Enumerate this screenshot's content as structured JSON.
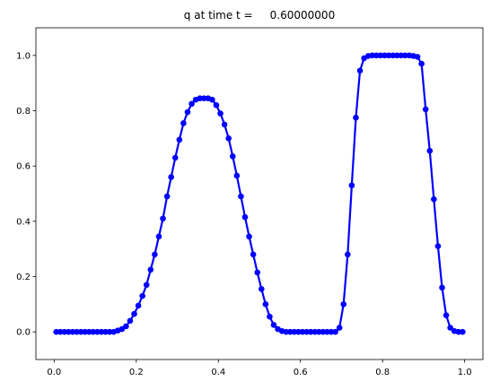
{
  "chart_data": {
    "type": "line",
    "title": "q at time t =     0.60000000",
    "x": [
      0.005,
      0.015,
      0.025,
      0.035,
      0.045,
      0.055,
      0.065,
      0.075,
      0.085,
      0.095,
      0.105,
      0.115,
      0.125,
      0.135,
      0.145,
      0.155,
      0.165,
      0.175,
      0.185,
      0.195,
      0.205,
      0.215,
      0.225,
      0.235,
      0.245,
      0.255,
      0.265,
      0.275,
      0.285,
      0.295,
      0.305,
      0.315,
      0.325,
      0.335,
      0.345,
      0.355,
      0.365,
      0.375,
      0.385,
      0.395,
      0.405,
      0.415,
      0.425,
      0.435,
      0.445,
      0.455,
      0.465,
      0.475,
      0.485,
      0.495,
      0.505,
      0.515,
      0.525,
      0.535,
      0.545,
      0.555,
      0.565,
      0.575,
      0.585,
      0.595,
      0.605,
      0.615,
      0.625,
      0.635,
      0.645,
      0.655,
      0.665,
      0.675,
      0.685,
      0.695,
      0.705,
      0.715,
      0.725,
      0.735,
      0.745,
      0.755,
      0.765,
      0.775,
      0.785,
      0.795,
      0.805,
      0.815,
      0.825,
      0.835,
      0.845,
      0.855,
      0.865,
      0.875,
      0.885,
      0.895,
      0.905,
      0.915,
      0.925,
      0.935,
      0.945,
      0.955,
      0.965,
      0.975,
      0.985,
      0.995
    ],
    "series": [
      {
        "color": "#0000ff",
        "values": [
          0,
          0,
          0,
          0,
          0,
          0,
          0,
          0,
          0,
          0,
          0,
          0,
          0,
          0,
          0,
          0.005,
          0.01,
          0.02,
          0.04,
          0.065,
          0.095,
          0.13,
          0.17,
          0.225,
          0.28,
          0.345,
          0.41,
          0.49,
          0.56,
          0.63,
          0.695,
          0.755,
          0.795,
          0.825,
          0.84,
          0.845,
          0.845,
          0.845,
          0.84,
          0.82,
          0.79,
          0.75,
          0.7,
          0.635,
          0.565,
          0.49,
          0.415,
          0.345,
          0.28,
          0.215,
          0.155,
          0.1,
          0.055,
          0.025,
          0.01,
          0.003,
          0,
          0,
          0,
          0,
          0,
          0,
          0,
          0,
          0,
          0,
          0,
          0,
          0,
          0.015,
          0.1,
          0.28,
          0.53,
          0.775,
          0.945,
          0.99,
          0.998,
          1.0,
          1.0,
          1.0,
          1.0,
          1.0,
          1.0,
          1.0,
          1.0,
          1.0,
          1.0,
          0.998,
          0.995,
          0.97,
          0.805,
          0.655,
          0.48,
          0.31,
          0.16,
          0.06,
          0.015,
          0.003,
          0,
          0
        ]
      }
    ],
    "xlim": [
      -0.0445,
      1.0445
    ],
    "xticks": [
      {
        "value": 0,
        "label": "0.0"
      },
      {
        "value": 0.2,
        "label": "0.2"
      },
      {
        "value": 0.4,
        "label": "0.4"
      },
      {
        "value": 0.6,
        "label": "0.6"
      },
      {
        "value": 0.8,
        "label": "0.8"
      },
      {
        "value": 1,
        "label": "1.0"
      }
    ],
    "ylim": [
      -0.1,
      1.1
    ],
    "yticks": [
      {
        "value": 0,
        "label": "0.0"
      },
      {
        "value": 0.2,
        "label": "0.2"
      },
      {
        "value": 0.4,
        "label": "0.4"
      },
      {
        "value": 0.6,
        "label": "0.6"
      },
      {
        "value": 0.8,
        "label": "0.8"
      },
      {
        "value": 1,
        "label": "1.0"
      }
    ]
  }
}
